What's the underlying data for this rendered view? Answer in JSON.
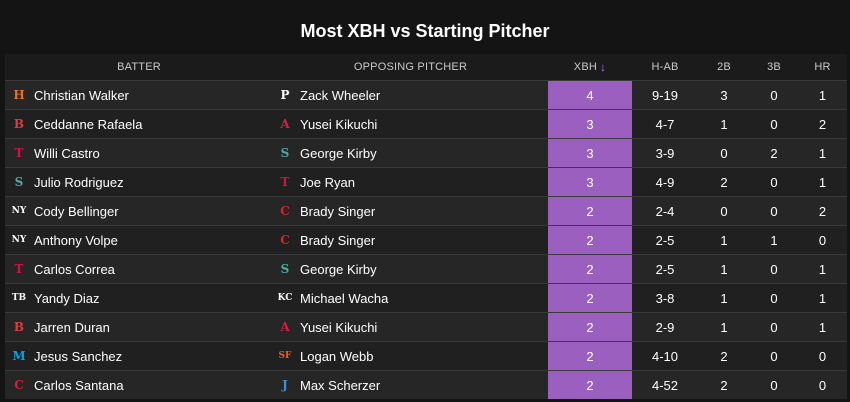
{
  "title": "Most XBH vs Starting Pitcher",
  "colors": {
    "accent": "#9b5fc0",
    "background": "#141414"
  },
  "columns": {
    "batter": "BATTER",
    "pitcher": "OPPOSING PITCHER",
    "xbh": "XBH",
    "xbh_sort_icon": "↓",
    "hab": "H-AB",
    "doubles": "2B",
    "triples": "3B",
    "hr": "HR"
  },
  "rows": [
    {
      "batter": "Christian Walker",
      "batter_logo": "astros-logo-icon",
      "batter_glyph": "H",
      "batter_color": "#eb6e1f",
      "pitcher": "Zack Wheeler",
      "pitcher_logo": "phillies-logo-icon",
      "pitcher_glyph": "P",
      "pitcher_color": "#ffffff",
      "xbh": "4",
      "hab": "9-19",
      "doubles": "3",
      "triples": "0",
      "hr": "1"
    },
    {
      "batter": "Ceddanne Rafaela",
      "batter_logo": "red-sox-logo-icon",
      "batter_glyph": "B",
      "batter_color": "#e03a3e",
      "pitcher": "Yusei Kikuchi",
      "pitcher_logo": "angels-logo-icon",
      "pitcher_glyph": "A",
      "pitcher_color": "#d71e3a",
      "xbh": "3",
      "hab": "4-7",
      "doubles": "1",
      "triples": "0",
      "hr": "2"
    },
    {
      "batter": "Willi Castro",
      "batter_logo": "twins-logo-icon",
      "batter_glyph": "T",
      "batter_color": "#d31145",
      "pitcher": "George Kirby",
      "pitcher_logo": "mariners-logo-icon",
      "pitcher_glyph": "S",
      "pitcher_color": "#4fa9a3",
      "xbh": "3",
      "hab": "3-9",
      "doubles": "0",
      "triples": "2",
      "hr": "1"
    },
    {
      "batter": "Julio Rodriguez",
      "batter_logo": "mariners-logo-icon",
      "batter_glyph": "S",
      "batter_color": "#4fa9a3",
      "pitcher": "Joe Ryan",
      "pitcher_logo": "twins-logo-icon",
      "pitcher_glyph": "T",
      "pitcher_color": "#d31145",
      "xbh": "3",
      "hab": "4-9",
      "doubles": "2",
      "triples": "0",
      "hr": "1"
    },
    {
      "batter": "Cody Bellinger",
      "batter_logo": "yankees-logo-icon",
      "batter_glyph": "NY",
      "batter_color": "#ffffff",
      "pitcher": "Brady Singer",
      "pitcher_logo": "reds-logo-icon",
      "pitcher_glyph": "C",
      "pitcher_color": "#e21f26",
      "xbh": "2",
      "hab": "2-4",
      "doubles": "0",
      "triples": "0",
      "hr": "2"
    },
    {
      "batter": "Anthony Volpe",
      "batter_logo": "yankees-logo-icon",
      "batter_glyph": "NY",
      "batter_color": "#ffffff",
      "pitcher": "Brady Singer",
      "pitcher_logo": "reds-logo-icon",
      "pitcher_glyph": "C",
      "pitcher_color": "#e21f26",
      "xbh": "2",
      "hab": "2-5",
      "doubles": "1",
      "triples": "1",
      "hr": "0"
    },
    {
      "batter": "Carlos Correa",
      "batter_logo": "twins-logo-icon",
      "batter_glyph": "T",
      "batter_color": "#d31145",
      "pitcher": "George Kirby",
      "pitcher_logo": "mariners-logo-icon",
      "pitcher_glyph": "S",
      "pitcher_color": "#4fa9a3",
      "xbh": "2",
      "hab": "2-5",
      "doubles": "1",
      "triples": "0",
      "hr": "1"
    },
    {
      "batter": "Yandy Diaz",
      "batter_logo": "rays-logo-icon",
      "batter_glyph": "TB",
      "batter_color": "#ffffff",
      "pitcher": "Michael Wacha",
      "pitcher_logo": "royals-logo-icon",
      "pitcher_glyph": "KC",
      "pitcher_color": "#ffffff",
      "xbh": "2",
      "hab": "3-8",
      "doubles": "1",
      "triples": "0",
      "hr": "1"
    },
    {
      "batter": "Jarren Duran",
      "batter_logo": "red-sox-logo-icon",
      "batter_glyph": "B",
      "batter_color": "#e03a3e",
      "pitcher": "Yusei Kikuchi",
      "pitcher_logo": "angels-logo-icon",
      "pitcher_glyph": "A",
      "pitcher_color": "#d71e3a",
      "xbh": "2",
      "hab": "2-9",
      "doubles": "1",
      "triples": "0",
      "hr": "1"
    },
    {
      "batter": "Jesus Sanchez",
      "batter_logo": "marlins-logo-icon",
      "batter_glyph": "M",
      "batter_color": "#00a3e0",
      "pitcher": "Logan Webb",
      "pitcher_logo": "giants-logo-icon",
      "pitcher_glyph": "SF",
      "pitcher_color": "#fd5a1e",
      "xbh": "2",
      "hab": "4-10",
      "doubles": "2",
      "triples": "0",
      "hr": "0"
    },
    {
      "batter": "Carlos Santana",
      "batter_logo": "guardians-logo-icon",
      "batter_glyph": "C",
      "batter_color": "#e31937",
      "pitcher": "Max Scherzer",
      "pitcher_logo": "blue-jays-logo-icon",
      "pitcher_glyph": "J",
      "pitcher_color": "#3c8fd6",
      "xbh": "2",
      "hab": "4-52",
      "doubles": "2",
      "triples": "0",
      "hr": "0"
    }
  ]
}
